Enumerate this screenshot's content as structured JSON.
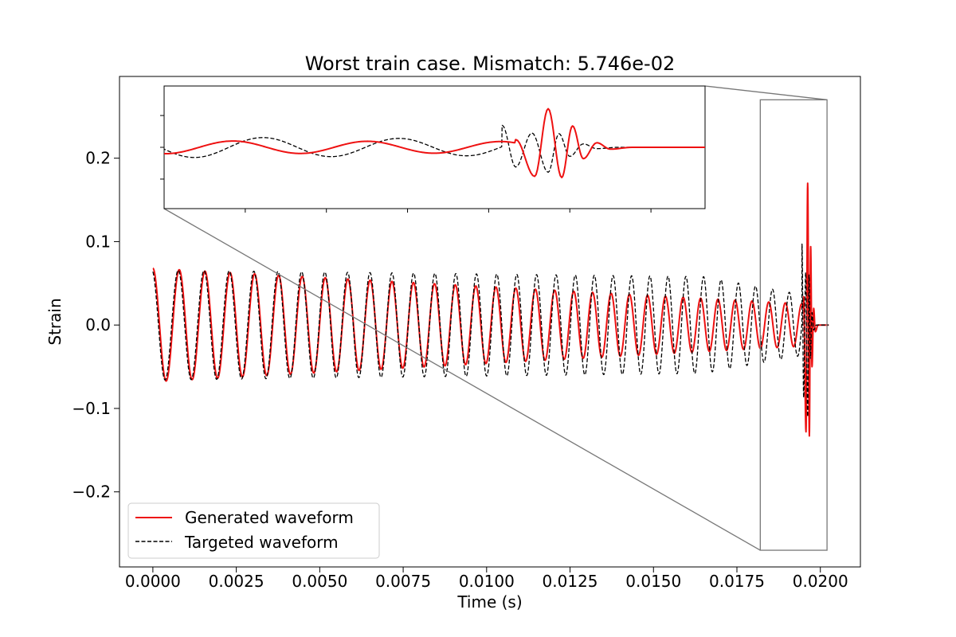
{
  "chart_data": {
    "type": "line",
    "title": "Worst train case. Mismatch: 5.746e-02",
    "xlabel": "Time (s)",
    "ylabel": "Strain",
    "xlim": [
      -0.001,
      0.0212
    ],
    "ylim": [
      -0.29,
      0.298
    ],
    "x_ticks": [
      0.0,
      0.0025,
      0.005,
      0.0075,
      0.01,
      0.0125,
      0.015,
      0.0175,
      0.02
    ],
    "x_tick_labels": [
      "0.0000",
      "0.0025",
      "0.0050",
      "0.0075",
      "0.0100",
      "0.0125",
      "0.0150",
      "0.0175",
      "0.0200"
    ],
    "y_ticks": [
      0.2,
      0.1,
      0.0,
      -0.1,
      -0.2
    ],
    "y_tick_labels": [
      "0.2",
      "0.1",
      "0.0",
      "−0.1",
      "−0.2"
    ],
    "grid": false,
    "legend_position": "lower-left",
    "series": [
      {
        "name": "Generated waveform",
        "color": "#ee1111",
        "style": "solid",
        "model": {
          "type": "chirp",
          "t_start": 0.0,
          "t_end": 0.02025,
          "t_merger": 0.01965,
          "freq_start": 1250,
          "freq_end": 2050,
          "amp_start": 0.068,
          "amp_end": 0.025,
          "merger_peaks": [
            {
              "t": 0.0195,
              "value": 0.034
            },
            {
              "t": 0.01957,
              "value": -0.128
            },
            {
              "t": 0.01962,
              "value": 0.17
            },
            {
              "t": 0.01967,
              "value": -0.133
            },
            {
              "t": 0.01971,
              "value": 0.094
            },
            {
              "t": 0.01975,
              "value": -0.05
            },
            {
              "t": 0.0198,
              "value": 0.02
            },
            {
              "t": 0.01985,
              "value": -0.008
            }
          ]
        }
      },
      {
        "name": "Targeted waveform",
        "color": "#000000",
        "style": "dashed",
        "model": {
          "type": "chirp",
          "t_start": 0.0,
          "t_end": 0.02025,
          "t_merger": 0.01965,
          "freq_start": 1250,
          "freq_end": 2020,
          "phase_offset": 0.25,
          "amp_start": 0.066,
          "amp_mid": 0.058,
          "amp_mid_t": 0.0165,
          "amp_end": 0.035,
          "merger_peaks": [
            {
              "t": 0.01945,
              "value": 0.097
            },
            {
              "t": 0.0195,
              "value": -0.087
            },
            {
              "t": 0.01956,
              "value": 0.063
            },
            {
              "t": 0.01962,
              "value": -0.11
            },
            {
              "t": 0.01966,
              "value": 0.06
            },
            {
              "t": 0.0197,
              "value": -0.04
            },
            {
              "t": 0.01975,
              "value": 0.015
            },
            {
              "t": 0.0198,
              "value": -0.006
            }
          ]
        }
      }
    ],
    "inset": {
      "xlim": [
        0.0182,
        0.0202
      ],
      "ylim": [
        -0.27,
        0.27
      ],
      "x_tick_values": [
        0.0185,
        0.0188,
        0.0191,
        0.0194,
        0.0197,
        0.02
      ],
      "y_tick_values": [
        0.14,
        0.0,
        -0.14
      ],
      "tick_labels_shown": false
    }
  }
}
